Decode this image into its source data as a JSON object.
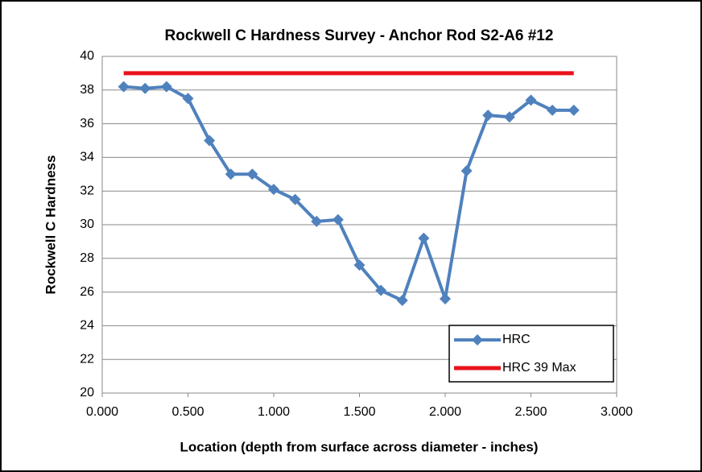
{
  "chart_data": {
    "type": "line",
    "title": "Rockwell C Hardness Survey - Anchor Rod S2-A6 #12",
    "xlabel": "Location (depth from surface across diameter - inches)",
    "ylabel": "Rockwell C Hardness",
    "series": [
      {
        "name": "HRC",
        "color": "#4f81bd",
        "marker": "diamond",
        "x": [
          0.125,
          0.25,
          0.375,
          0.5,
          0.625,
          0.75,
          0.875,
          1.0,
          1.125,
          1.25,
          1.375,
          1.5,
          1.625,
          1.75,
          1.875,
          2.0,
          2.125,
          2.25,
          2.375,
          2.5,
          2.625,
          2.75
        ],
        "values": [
          38.2,
          38.1,
          38.2,
          37.5,
          35.0,
          33.0,
          33.0,
          32.1,
          31.5,
          30.2,
          30.3,
          27.6,
          26.1,
          25.5,
          29.2,
          25.6,
          33.2,
          36.5,
          36.4,
          37.4,
          36.8,
          36.8
        ]
      },
      {
        "name": "HRC 39 Max",
        "color": "#e8121b",
        "x": [
          0.125,
          2.75
        ],
        "values": [
          39,
          39
        ]
      }
    ],
    "xlim": [
      0,
      3
    ],
    "xticks": [
      {
        "value": 0,
        "label": "0.000"
      },
      {
        "value": 0.5,
        "label": "0.500"
      },
      {
        "value": 1,
        "label": "1.000"
      },
      {
        "value": 1.5,
        "label": "1.500"
      },
      {
        "value": 2,
        "label": "2.000"
      },
      {
        "value": 2.5,
        "label": "2.500"
      },
      {
        "value": 3,
        "label": "3.000"
      }
    ],
    "ylim": [
      20,
      40
    ],
    "yticks": [
      20,
      22,
      24,
      26,
      28,
      30,
      32,
      34,
      36,
      38,
      40
    ],
    "grid": true,
    "legend": "lower right"
  }
}
